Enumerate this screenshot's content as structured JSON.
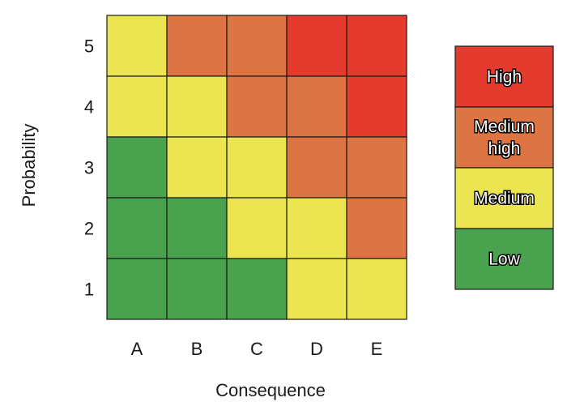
{
  "chart_data": {
    "type": "heatmap",
    "title": "",
    "xlabel": "Consequence",
    "ylabel": "Probability",
    "x_categories": [
      "A",
      "B",
      "C",
      "D",
      "E"
    ],
    "y_categories": [
      "5",
      "4",
      "3",
      "2",
      "1"
    ],
    "grid": [
      [
        "Medium",
        "Medium high",
        "Medium high",
        "High",
        "High"
      ],
      [
        "Medium",
        "Medium",
        "Medium high",
        "Medium high",
        "High"
      ],
      [
        "Low",
        "Medium",
        "Medium",
        "Medium high",
        "Medium high"
      ],
      [
        "Low",
        "Low",
        "Medium",
        "Medium",
        "Medium high"
      ],
      [
        "Low",
        "Low",
        "Low",
        "Medium",
        "Medium"
      ]
    ],
    "legend": [
      {
        "level": "High",
        "lines": [
          "High"
        ],
        "color": "#e53b2e"
      },
      {
        "level": "Medium high",
        "lines": [
          "Medium",
          "high"
        ],
        "color": "#dd7444"
      },
      {
        "level": "Medium",
        "lines": [
          "Medium"
        ],
        "color": "#ece552"
      },
      {
        "level": "Low",
        "lines": [
          "Low"
        ],
        "color": "#4aa14e"
      }
    ],
    "legend_placement": "right"
  }
}
